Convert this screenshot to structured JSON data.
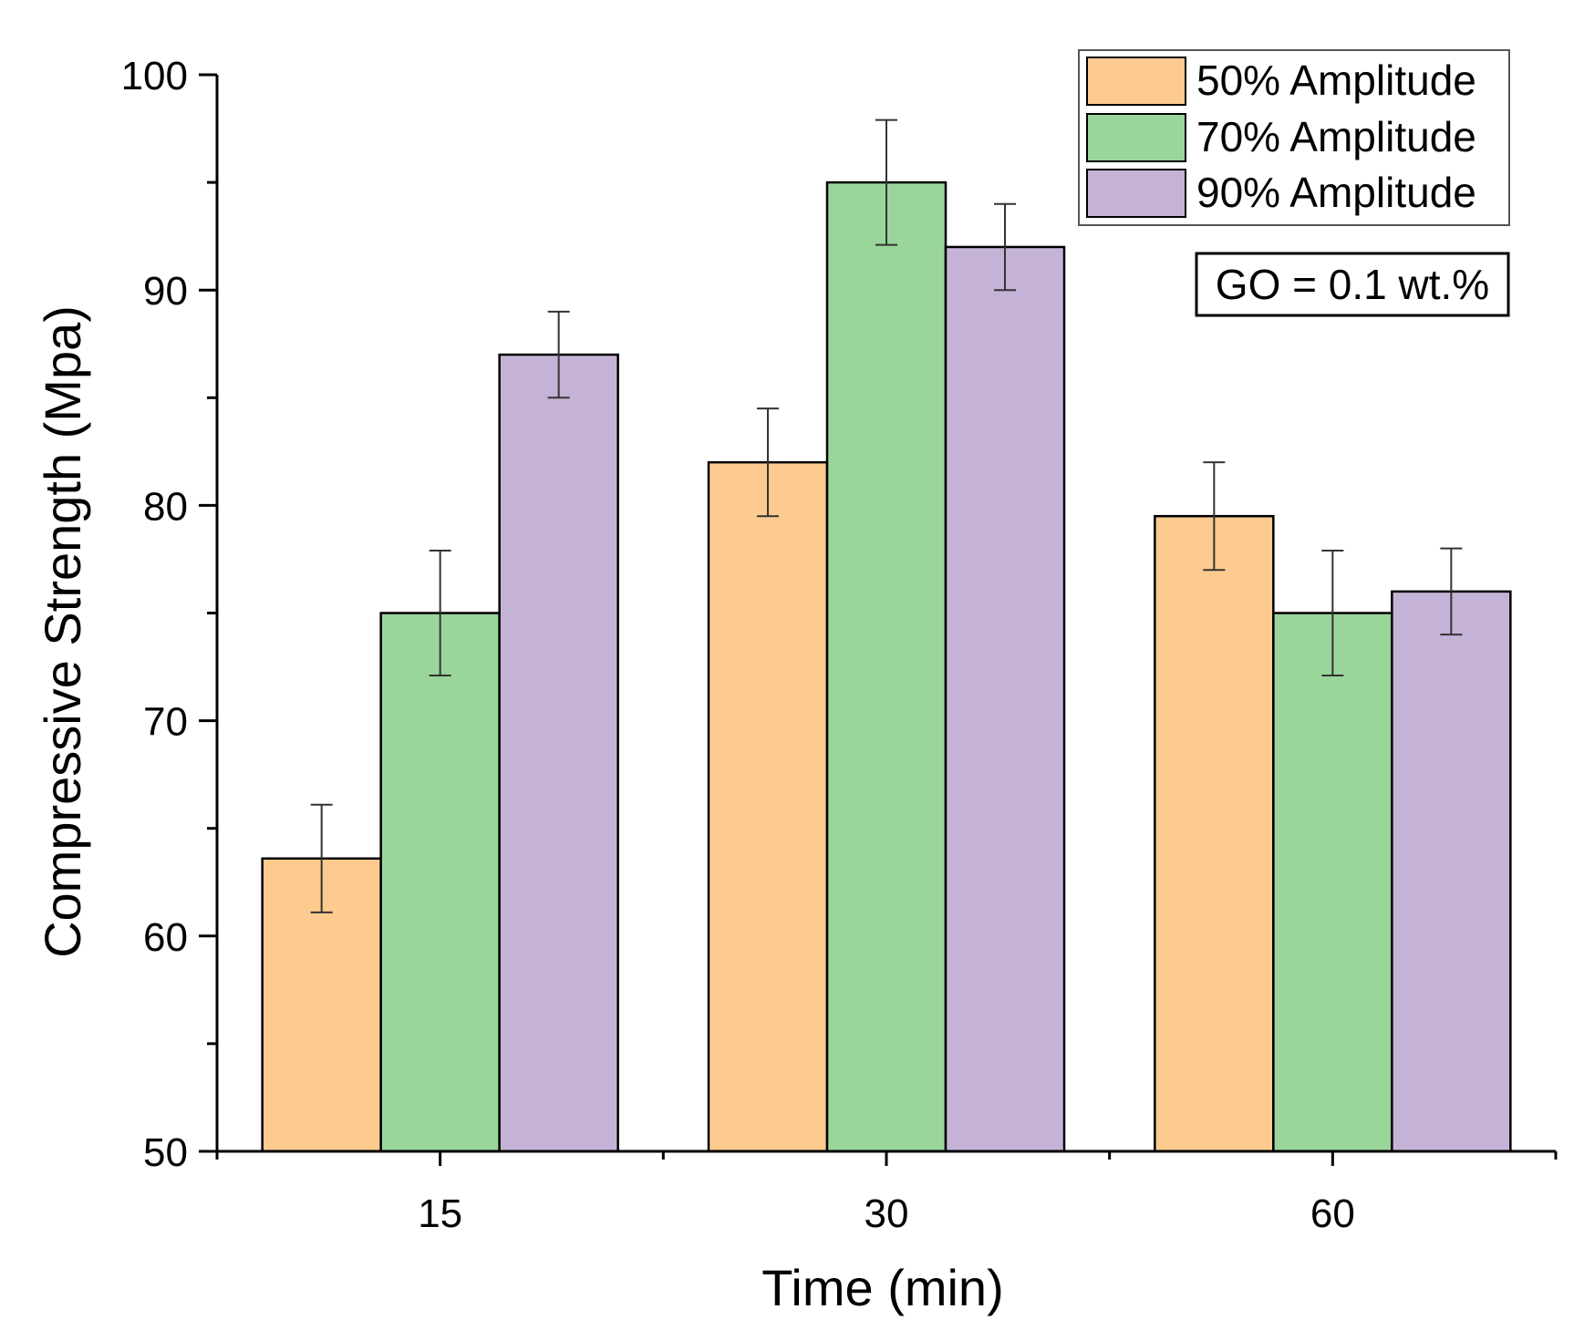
{
  "chart_data": {
    "type": "bar",
    "title": "",
    "xlabel": "Time (min)",
    "ylabel": "Compressive Strength (Mpa)",
    "categories": [
      "15",
      "30",
      "60"
    ],
    "ylim": [
      50,
      100
    ],
    "yticks_major": [
      50,
      60,
      70,
      80,
      90,
      100
    ],
    "yticks_minor": [
      55,
      65,
      75,
      85,
      95
    ],
    "grid": false,
    "legend_position": "top-right",
    "annotation": "GO = 0.1 wt.%",
    "series": [
      {
        "name": "50% Amplitude",
        "color": "#FDCB8F",
        "values": [
          63.6,
          82.0,
          79.5
        ],
        "errors": [
          2.5,
          2.5,
          2.5
        ]
      },
      {
        "name": "70% Amplitude",
        "color": "#9AD69A",
        "values": [
          75.0,
          95.0,
          75.0
        ],
        "errors": [
          2.9,
          2.9,
          2.9
        ]
      },
      {
        "name": "90% Amplitude",
        "color": "#C5B3D7",
        "values": [
          87.0,
          92.0,
          76.0
        ],
        "errors": [
          2.0,
          2.0,
          2.0
        ]
      }
    ]
  }
}
